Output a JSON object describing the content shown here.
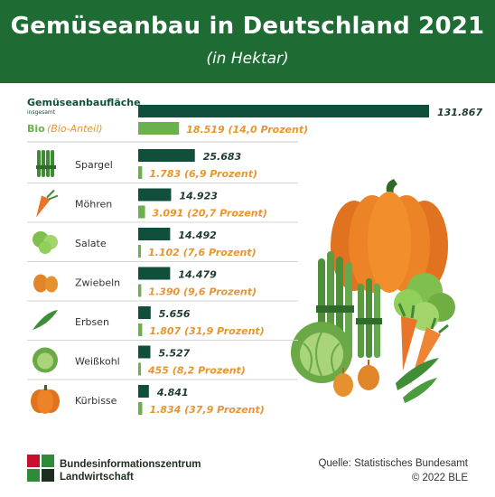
{
  "header": {
    "title": "Gemüseanbau in Deutschland 2021",
    "subtitle": "(in Hektar)"
  },
  "chart_data": {
    "type": "bar",
    "title": "Gemüseanbau in Deutschland 2021",
    "subtitle": "(in Hektar)",
    "total": {
      "label": "Gemüseanbaufläche",
      "sublabel": "insgesamt",
      "value": 131867,
      "value_label": "131.867",
      "bio_label": "Bio",
      "bio_sublabel": "(Bio-Anteil)",
      "bio_value": 18519,
      "bio_value_label": "18.519",
      "bio_share_label": "(14,0 Prozent)"
    },
    "categories": [
      "Spargel",
      "Möhren",
      "Salate",
      "Zwiebeln",
      "Erbsen",
      "Weißkohl",
      "Kürbisse"
    ],
    "series": [
      {
        "name": "",
        "values": [
          25683,
          14923,
          14492,
          14479,
          5656,
          5527,
          4841
        ],
        "value_labels": [
          "25.683",
          "14.923",
          "14.492",
          "14.479",
          "5.656",
          "5.527",
          "4.841"
        ]
      },
      {
        "name": "Bio",
        "values": [
          1783,
          3091,
          1102,
          1390,
          1807,
          455,
          1834
        ],
        "value_labels": [
          "1.783",
          "3.091",
          "1.102",
          "1.390",
          "1.807",
          "455",
          "1.834"
        ],
        "share_labels": [
          "(6,9 Prozent)",
          "(20,7 Prozent)",
          "(7,6 Prozent)",
          "(9,6 Prozent)",
          "(31,9 Prozent)",
          "(8,2 Prozent)",
          "(37,9 Prozent)"
        ]
      }
    ],
    "icons": [
      "asparagus-icon",
      "carrot-icon",
      "lettuce-icon",
      "onion-icon",
      "pea-pod-icon",
      "cabbage-icon",
      "pumpkin-icon"
    ],
    "colors": {
      "total": "#0f4f3c",
      "bio": "#6ab04c",
      "bio_text": "#e8952f"
    }
  },
  "footer": {
    "brand_line1": "Bundesinformationszentrum",
    "brand_line2": "Landwirtschaft",
    "source": "Quelle: Statistisches Bundesamt",
    "copyright": "© 2022 BLE"
  }
}
